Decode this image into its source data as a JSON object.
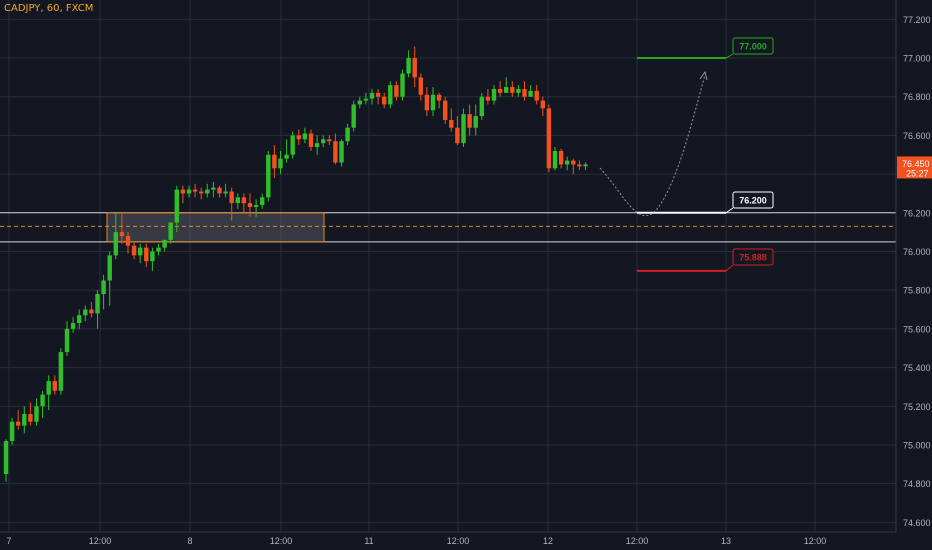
{
  "symbol_title": "CADJPY, 60, FXCM",
  "colors": {
    "background": "#131722",
    "grid": "#2a2e39",
    "bull": "#2fbf2a",
    "bear": "#f4511e",
    "axis_text": "#b2b5be",
    "target": "#27a81c",
    "stop": "#d31f1f",
    "entry": "#ffffff",
    "zone_border": "#e8861c",
    "price_tag": "#f4511e"
  },
  "chart_data": {
    "type": "candlestick",
    "title": "CADJPY, 60, FXCM",
    "ylim": [
      74.55,
      77.3
    ],
    "y_ticks": [
      "74.600",
      "74.800",
      "75.000",
      "75.200",
      "75.400",
      "75.600",
      "75.800",
      "76.000",
      "76.200",
      "76.400",
      "76.600",
      "76.800",
      "77.000",
      "77.200"
    ],
    "x_ticks": [
      "7",
      "12:00",
      "8",
      "12:00",
      "11",
      "12:00",
      "12",
      "12:00",
      "13",
      "12:00"
    ],
    "grid": true,
    "current_price": {
      "value": "76.450",
      "countdown": "25:27"
    },
    "candles": [
      [
        74.85,
        75.02,
        74.81,
        75.03
      ],
      [
        75.02,
        75.12,
        75.0,
        75.14
      ],
      [
        75.12,
        75.1,
        75.08,
        75.18
      ],
      [
        75.1,
        75.16,
        75.06,
        75.2
      ],
      [
        75.16,
        75.12,
        75.1,
        75.22
      ],
      [
        75.12,
        75.2,
        75.1,
        75.24
      ],
      [
        75.2,
        75.26,
        75.14,
        75.28
      ],
      [
        75.26,
        75.33,
        75.18,
        75.36
      ],
      [
        75.33,
        75.28,
        75.26,
        75.36
      ],
      [
        75.28,
        75.48,
        75.26,
        75.5
      ],
      [
        75.48,
        75.6,
        75.46,
        75.64
      ],
      [
        75.6,
        75.63,
        75.58,
        75.66
      ],
      [
        75.63,
        75.67,
        75.6,
        75.7
      ],
      [
        75.67,
        75.7,
        75.64,
        75.72
      ],
      [
        75.7,
        75.68,
        75.66,
        75.74
      ],
      [
        75.68,
        75.78,
        75.6,
        75.8
      ],
      [
        75.78,
        75.85,
        75.7,
        75.88
      ],
      [
        75.85,
        75.98,
        75.72,
        76.0
      ],
      [
        75.98,
        76.1,
        75.96,
        76.2
      ],
      [
        76.1,
        76.08,
        76.04,
        76.2
      ],
      [
        76.08,
        76.03,
        75.99,
        76.1
      ],
      [
        76.03,
        75.98,
        75.96,
        76.05
      ],
      [
        75.98,
        76.02,
        75.94,
        76.04
      ],
      [
        76.02,
        75.95,
        75.92,
        76.04
      ],
      [
        75.95,
        76.0,
        75.9,
        76.02
      ],
      [
        76.0,
        76.02,
        75.98,
        76.04
      ],
      [
        76.02,
        76.06,
        76.0,
        76.06
      ],
      [
        76.06,
        76.15,
        76.04,
        76.15
      ],
      [
        76.15,
        76.32,
        76.1,
        76.34
      ],
      [
        76.32,
        76.3,
        76.25,
        76.34
      ],
      [
        76.3,
        76.32,
        76.28,
        76.34
      ],
      [
        76.32,
        76.31,
        76.28,
        76.35
      ],
      [
        76.31,
        76.3,
        76.27,
        76.33
      ],
      [
        76.3,
        76.32,
        76.28,
        76.35
      ],
      [
        76.32,
        76.33,
        76.28,
        76.36
      ],
      [
        76.33,
        76.3,
        76.28,
        76.34
      ],
      [
        76.3,
        76.31,
        76.28,
        76.35
      ],
      [
        76.31,
        76.25,
        76.16,
        76.33
      ],
      [
        76.25,
        76.28,
        76.22,
        76.3
      ],
      [
        76.28,
        76.25,
        76.2,
        76.3
      ],
      [
        76.25,
        76.23,
        76.18,
        76.3
      ],
      [
        76.23,
        76.24,
        76.18,
        76.27
      ],
      [
        76.24,
        76.28,
        76.22,
        76.3
      ],
      [
        76.28,
        76.5,
        76.26,
        76.52
      ],
      [
        76.5,
        76.43,
        76.38,
        76.55
      ],
      [
        76.43,
        76.48,
        76.4,
        76.52
      ],
      [
        76.48,
        76.5,
        76.46,
        76.58
      ],
      [
        76.5,
        76.6,
        76.48,
        76.62
      ],
      [
        76.6,
        76.58,
        76.55,
        76.63
      ],
      [
        76.58,
        76.61,
        76.56,
        76.64
      ],
      [
        76.61,
        76.54,
        76.52,
        76.63
      ],
      [
        76.54,
        76.56,
        76.5,
        76.6
      ],
      [
        76.56,
        76.58,
        76.54,
        76.6
      ],
      [
        76.58,
        76.57,
        76.55,
        76.6
      ],
      [
        76.57,
        76.46,
        76.45,
        76.61
      ],
      [
        76.46,
        76.57,
        76.44,
        76.58
      ],
      [
        76.57,
        76.64,
        76.55,
        76.66
      ],
      [
        76.64,
        76.76,
        76.62,
        76.78
      ],
      [
        76.76,
        76.78,
        76.74,
        76.8
      ],
      [
        76.78,
        76.79,
        76.76,
        76.82
      ],
      [
        76.79,
        76.82,
        76.76,
        76.84
      ],
      [
        76.82,
        76.8,
        76.76,
        76.84
      ],
      [
        76.8,
        76.76,
        76.74,
        76.82
      ],
      [
        76.76,
        76.86,
        76.74,
        76.88
      ],
      [
        76.86,
        76.8,
        76.78,
        76.88
      ],
      [
        76.8,
        76.92,
        76.78,
        76.94
      ],
      [
        76.92,
        77.0,
        76.9,
        77.04
      ],
      [
        77.0,
        76.9,
        76.85,
        77.06
      ],
      [
        76.9,
        76.81,
        76.78,
        76.92
      ],
      [
        76.81,
        76.73,
        76.7,
        76.85
      ],
      [
        76.73,
        76.81,
        76.7,
        76.85
      ],
      [
        76.81,
        76.78,
        76.74,
        76.82
      ],
      [
        76.78,
        76.68,
        76.66,
        76.8
      ],
      [
        76.68,
        76.64,
        76.62,
        76.74
      ],
      [
        76.64,
        76.56,
        76.55,
        76.7
      ],
      [
        76.56,
        76.71,
        76.54,
        76.74
      ],
      [
        76.71,
        76.64,
        76.6,
        76.76
      ],
      [
        76.64,
        76.7,
        76.6,
        76.76
      ],
      [
        76.7,
        76.8,
        76.68,
        76.82
      ],
      [
        76.8,
        76.78,
        76.76,
        76.84
      ],
      [
        76.78,
        76.84,
        76.76,
        76.86
      ],
      [
        76.84,
        76.82,
        76.8,
        76.88
      ],
      [
        76.82,
        76.85,
        76.82,
        76.9
      ],
      [
        76.85,
        76.82,
        76.8,
        76.88
      ],
      [
        76.82,
        76.84,
        76.8,
        76.86
      ],
      [
        76.84,
        76.8,
        76.78,
        76.88
      ],
      [
        76.8,
        76.83,
        76.8,
        76.86
      ],
      [
        76.83,
        76.78,
        76.76,
        76.86
      ],
      [
        76.78,
        76.74,
        76.7,
        76.8
      ],
      [
        76.74,
        76.43,
        76.41,
        76.76
      ],
      [
        76.43,
        76.52,
        76.42,
        76.54
      ],
      [
        76.52,
        76.45,
        76.43,
        76.53
      ],
      [
        76.45,
        76.47,
        76.42,
        76.49
      ],
      [
        76.47,
        76.45,
        76.4,
        76.48
      ],
      [
        76.45,
        76.44,
        76.42,
        76.47
      ],
      [
        76.44,
        76.45,
        76.42,
        76.46
      ]
    ],
    "drawings": {
      "demand_zone": {
        "from": 76.05,
        "to": 76.2,
        "midline": 76.13
      },
      "entry": {
        "value": 76.2,
        "label": "76.200"
      },
      "target": {
        "value": 77.0,
        "label": "77.000"
      },
      "stop": {
        "value": 75.9,
        "label": "75.888"
      },
      "projected_path": [
        [
          76.45,
          76.2,
          77.0
        ]
      ]
    }
  }
}
